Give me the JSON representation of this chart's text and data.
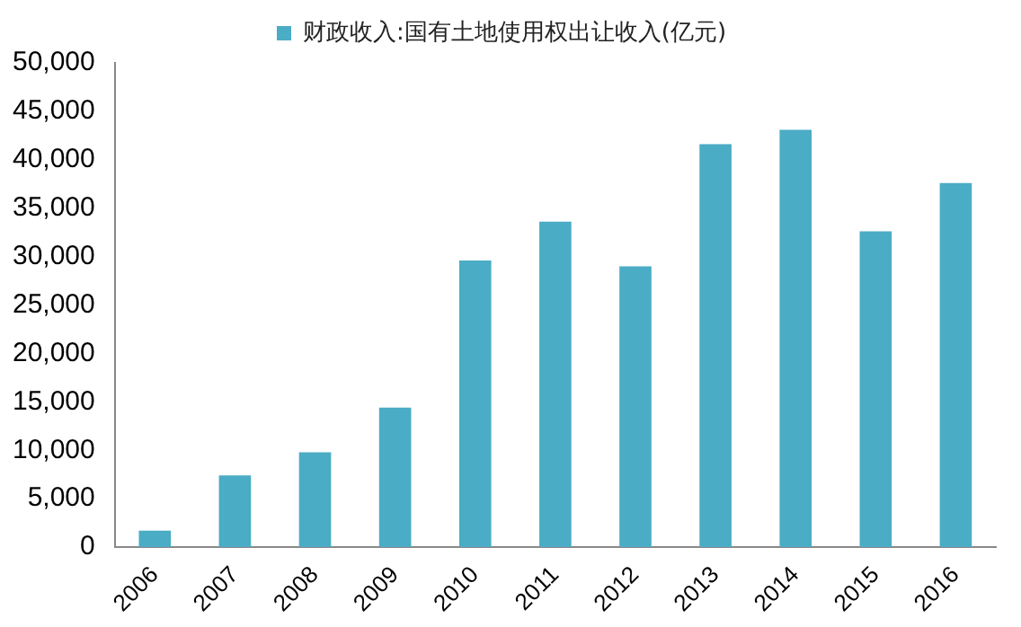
{
  "chart_data": {
    "type": "bar",
    "categories": [
      "2006",
      "2007",
      "2008",
      "2009",
      "2010",
      "2011",
      "2012",
      "2013",
      "2014",
      "2015",
      "2016"
    ],
    "series": [
      {
        "name": "财政收入:国有土地使用权出让收入(亿元)",
        "color": "#4bacc6",
        "values": [
          1700,
          7400,
          9800,
          14400,
          29600,
          33600,
          29000,
          41600,
          43100,
          32600,
          37600
        ]
      }
    ],
    "ylim": [
      0,
      50000
    ],
    "yticks": [
      0,
      {
        "value": 5000,
        "label": "5,000"
      },
      {
        "value": 10000,
        "label": "10,000"
      },
      {
        "value": 15000,
        "label": "15,000"
      },
      {
        "value": 20000,
        "label": "20,000"
      },
      {
        "value": 25000,
        "label": "25,000"
      },
      {
        "value": 30000,
        "label": "30,000"
      },
      {
        "value": 35000,
        "label": "35,000"
      },
      {
        "value": 40000,
        "label": "40,000"
      },
      {
        "value": 45000,
        "label": "45,000"
      },
      {
        "value": 50000,
        "label": "50,000"
      }
    ],
    "grid": false,
    "legend": "top"
  }
}
